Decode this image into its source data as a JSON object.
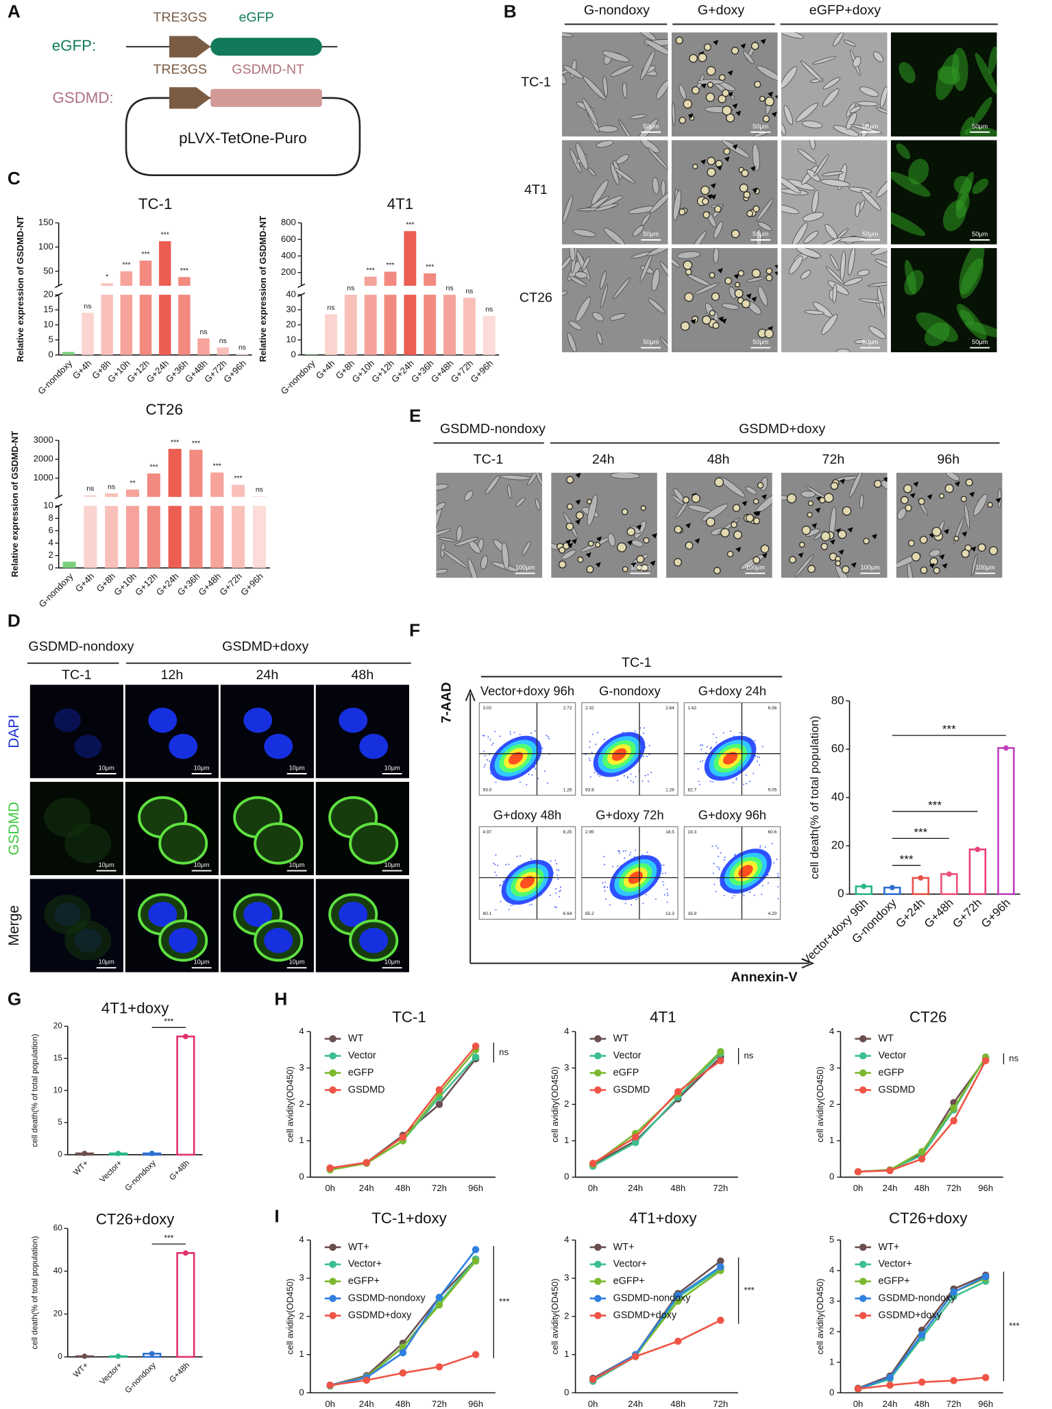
{
  "panels": {
    "letters": [
      "A",
      "B",
      "C",
      "D",
      "E",
      "F",
      "G",
      "H",
      "I"
    ],
    "A": {
      "constructs": [
        {
          "name": "eGFP:",
          "promoter": "TRE3GS",
          "gene": "eGFP"
        },
        {
          "name": "GSDMD:",
          "promoter": "TRE3GS",
          "gene": "GSDMD-NT"
        }
      ],
      "plasmid": "pLVX-TetOne-Puro"
    },
    "B": {
      "groups": [
        "G-nondoxy",
        "G+doxy",
        "eGFP+doxy"
      ],
      "rows": [
        "TC-1",
        "4T1",
        "CT26"
      ],
      "scale_bar": "50μm"
    },
    "D": {
      "groups": [
        "GSDMD-nondoxy",
        "GSDMD+doxy"
      ],
      "columns": [
        "TC-1",
        "12h",
        "24h",
        "48h"
      ],
      "rows": [
        "DAPI",
        "GSDMD",
        "Merge"
      ],
      "scale_bar": "10μm"
    },
    "E": {
      "groups": [
        "GSDMD-nondoxy",
        "GSDMD+doxy"
      ],
      "columns": [
        "TC-1",
        "24h",
        "48h",
        "72h",
        "96h"
      ],
      "scale_bar": "100μm"
    },
    "F": {
      "title": "TC-1",
      "y_axis": "7-AAD",
      "x_axis": "Annexin-V",
      "plots": [
        {
          "title": "Vector+doxy 96h",
          "quadrants": [
            "3.02",
            "2.72",
            "93.0",
            "1.26"
          ]
        },
        {
          "title": "G-nondoxy",
          "quadrants": [
            "2.32",
            "2.64",
            "93.8",
            "1.26"
          ]
        },
        {
          "title": "G+doxy 24h",
          "quadrants": [
            "1.62",
            "6.56",
            "82.7",
            "9.05"
          ]
        },
        {
          "title": "G+doxy 48h",
          "quadrants": [
            "4.97",
            "8.25",
            "80.1",
            "6.64"
          ]
        },
        {
          "title": "G+doxy 72h",
          "quadrants": [
            "2.95",
            "18.5",
            "65.2",
            "13.3"
          ]
        },
        {
          "title": "G+doxy 96h",
          "quadrants": [
            "19.3",
            "60.6",
            "16.9",
            "4.20"
          ]
        }
      ]
    }
  },
  "chart_data": [
    {
      "type": "bar",
      "title": "TC-1",
      "y_label": "Relative expression of GSDMD-NT",
      "categories": [
        "G-nondoxy",
        "G+4h",
        "G+8h",
        "G+10h",
        "G+12h",
        "G+24h",
        "G+36h",
        "G+48h",
        "G+72h",
        "G+96h"
      ],
      "values": [
        1,
        14,
        25,
        50,
        72,
        112,
        38,
        5.5,
        2.5,
        0.3
      ],
      "annotations": [
        null,
        "ns",
        "*",
        "***",
        "***",
        "***",
        "***",
        "ns",
        "ns",
        "ns"
      ],
      "colors": [
        "#7ccf7c",
        "#fbd3cf",
        "#f9c0ba",
        "#f5a39b",
        "#f28a80",
        "#ec5e52",
        "#f28a80",
        "#f5a39b",
        "#f9c0ba",
        "#fcdcd8"
      ],
      "ylim": [
        0,
        150
      ],
      "break_at": 20,
      "yticks": [
        0,
        5,
        10,
        15,
        20,
        50,
        100,
        150
      ]
    },
    {
      "type": "bar",
      "title": "4T1",
      "y_label": "Relative expression of GSDMD-NT",
      "categories": [
        "G-nondoxy",
        "G+4h",
        "G+8h",
        "G+10h",
        "G+12h",
        "G+24h",
        "G+36h",
        "G+48h",
        "G+72h",
        "G+96h"
      ],
      "values": [
        0.3,
        27,
        40,
        150,
        210,
        700,
        190,
        40,
        38,
        26
      ],
      "annotations": [
        null,
        "ns",
        "ns",
        "***",
        "***",
        "***",
        "***",
        "ns",
        "ns",
        "ns"
      ],
      "colors": [
        "#7ccf7c",
        "#fbd3cf",
        "#f9c0ba",
        "#f5a39b",
        "#f28a80",
        "#ec5e52",
        "#f28a80",
        "#f5a39b",
        "#f9c0ba",
        "#fcdcd8"
      ],
      "ylim": [
        0,
        800
      ],
      "break_at": 40,
      "yticks": [
        0,
        10,
        20,
        30,
        40,
        200,
        400,
        600,
        800
      ]
    },
    {
      "type": "bar",
      "title": "CT26",
      "y_label": "Relative expression of GSDMD-NT",
      "categories": [
        "G-nondoxy",
        "G+4h",
        "G+8h",
        "G+10h",
        "G+12h",
        "G+24h",
        "G+36h",
        "G+48h",
        "G+72h",
        "G+96h"
      ],
      "values": [
        1,
        100,
        200,
        400,
        1250,
        2550,
        2500,
        1300,
        650,
        50
      ],
      "annotations": [
        null,
        "ns",
        "ns",
        "**",
        "***",
        "***",
        "***",
        "***",
        "***",
        "ns"
      ],
      "colors": [
        "#7ccf7c",
        "#fbd3cf",
        "#f9c0ba",
        "#f5a39b",
        "#f28a80",
        "#ec5e52",
        "#f28a80",
        "#f5a39b",
        "#f9c0ba",
        "#fcdcd8"
      ],
      "ylim": [
        0,
        3000
      ],
      "break_at": 10,
      "yticks": [
        0,
        2,
        4,
        6,
        8,
        10,
        1000,
        2000,
        3000
      ]
    },
    {
      "type": "bar",
      "y_label": "cell death(% of total population)",
      "categories": [
        "Vector+doxy 96h",
        "G-nondoxy",
        "G+24h",
        "G+48h",
        "G+72h",
        "G+96h"
      ],
      "values": [
        3.2,
        2.7,
        6.7,
        8.3,
        18.5,
        60.5
      ],
      "colors": [
        "#2bb58b",
        "#2f6fd0",
        "#e8514a",
        "#f0507a",
        "#e8407e",
        "#c040c0"
      ],
      "hollow": true,
      "ylim": [
        0,
        80
      ],
      "yticks": [
        0,
        20,
        40,
        60,
        80
      ],
      "brackets": [
        {
          "from": "G-nondoxy",
          "to": "G+24h",
          "label": "***"
        },
        {
          "from": "G-nondoxy",
          "to": "G+48h",
          "label": "***"
        },
        {
          "from": "G-nondoxy",
          "to": "G+72h",
          "label": "***"
        },
        {
          "from": "G-nondoxy",
          "to": "G+96h",
          "label": "***"
        }
      ]
    },
    {
      "type": "bar",
      "title": "4T1+doxy",
      "y_label": "cell death(% of total population)",
      "categories": [
        "WT+",
        "Vector+",
        "G-nondoxy",
        "G+48h"
      ],
      "values": [
        0.2,
        0.2,
        0.2,
        18.4
      ],
      "colors": [
        "#6b4f4f",
        "#2bb58b",
        "#2f6fd0",
        "#e0306e"
      ],
      "hollow": true,
      "ylim": [
        0,
        20
      ],
      "yticks": [
        0,
        5,
        10,
        15,
        20
      ],
      "brackets": [
        {
          "from": "G-nondoxy",
          "to": "G+48h",
          "label": "***"
        }
      ]
    },
    {
      "type": "bar",
      "title": "CT26+doxy",
      "y_label": "cell death(% of total population)",
      "categories": [
        "WT+",
        "Vector+",
        "G-nondoxy",
        "G+48h"
      ],
      "values": [
        0.3,
        0.3,
        1.5,
        48.5
      ],
      "colors": [
        "#6b4f4f",
        "#2bb58b",
        "#2f6fd0",
        "#e0306e"
      ],
      "hollow": true,
      "ylim": [
        0,
        60
      ],
      "yticks": [
        0,
        20,
        40,
        60
      ],
      "brackets": [
        {
          "from": "G-nondoxy",
          "to": "G+48h",
          "label": "***"
        }
      ]
    },
    {
      "type": "line",
      "title": "TC-1",
      "y_label": "cell avidity(OD450)",
      "categories": [
        "0h",
        "24h",
        "48h",
        "72h",
        "96h"
      ],
      "series": [
        {
          "name": "WT",
          "color": "#6b4f4f",
          "values": [
            0.25,
            0.4,
            1.15,
            2.0,
            3.25
          ]
        },
        {
          "name": "Vector",
          "color": "#3cbf8f",
          "values": [
            0.22,
            0.38,
            1.0,
            2.2,
            3.3
          ]
        },
        {
          "name": "eGFP",
          "color": "#7cb82f",
          "values": [
            0.2,
            0.38,
            1.0,
            2.3,
            3.5
          ]
        },
        {
          "name": "GSDMD",
          "color": "#ef5446",
          "values": [
            0.25,
            0.4,
            1.1,
            2.4,
            3.6
          ]
        }
      ],
      "annotation": "ns",
      "ylim": [
        0,
        4
      ],
      "yticks": [
        0,
        1,
        2,
        3,
        4
      ]
    },
    {
      "type": "line",
      "title": "4T1",
      "y_label": "cell avidity(OD450)",
      "categories": [
        "0h",
        "24h",
        "48h",
        "72h"
      ],
      "series": [
        {
          "name": "WT",
          "color": "#6b4f4f",
          "values": [
            0.35,
            1.0,
            2.15,
            3.3
          ]
        },
        {
          "name": "Vector",
          "color": "#3cbf8f",
          "values": [
            0.3,
            0.95,
            2.2,
            3.4
          ]
        },
        {
          "name": "eGFP",
          "color": "#7cb82f",
          "values": [
            0.35,
            1.2,
            2.3,
            3.45
          ]
        },
        {
          "name": "GSDMD",
          "color": "#ef5446",
          "values": [
            0.38,
            1.1,
            2.35,
            3.2
          ]
        }
      ],
      "annotation": "ns",
      "ylim": [
        0,
        4
      ],
      "yticks": [
        0,
        1,
        2,
        3,
        4
      ]
    },
    {
      "type": "line",
      "title": "CT26",
      "y_label": "cell avidity(OD450)",
      "categories": [
        "0h",
        "24h",
        "48h",
        "72h",
        "96h"
      ],
      "series": [
        {
          "name": "WT",
          "color": "#6b4f4f",
          "values": [
            0.15,
            0.2,
            0.65,
            2.05,
            3.25
          ]
        },
        {
          "name": "Vector",
          "color": "#3cbf8f",
          "values": [
            0.15,
            0.2,
            0.6,
            1.85,
            3.3
          ]
        },
        {
          "name": "eGFP",
          "color": "#7cb82f",
          "values": [
            0.15,
            0.2,
            0.7,
            1.9,
            3.3
          ]
        },
        {
          "name": "GSDMD",
          "color": "#ef5446",
          "values": [
            0.15,
            0.18,
            0.5,
            1.55,
            3.2
          ]
        }
      ],
      "annotation": "ns",
      "ylim": [
        0,
        4
      ],
      "yticks": [
        0,
        1,
        2,
        3,
        4
      ]
    },
    {
      "type": "line",
      "title": "TC-1+doxy",
      "y_label": "cell avidity(OD450)",
      "categories": [
        "0h",
        "24h",
        "48h",
        "72h",
        "96h"
      ],
      "series": [
        {
          "name": "WT+",
          "color": "#6b4f4f",
          "values": [
            0.2,
            0.45,
            1.3,
            2.5,
            3.5
          ]
        },
        {
          "name": "Vector+",
          "color": "#3cbf8f",
          "values": [
            0.18,
            0.4,
            1.2,
            2.35,
            3.5
          ]
        },
        {
          "name": "eGFP+",
          "color": "#7cb82f",
          "values": [
            0.2,
            0.42,
            1.2,
            2.3,
            3.45
          ]
        },
        {
          "name": "GSDMD-nondoxy",
          "color": "#2f80e0",
          "values": [
            0.2,
            0.4,
            1.05,
            2.5,
            3.75
          ]
        },
        {
          "name": "GSDMD+doxy",
          "color": "#ef5446",
          "values": [
            0.2,
            0.33,
            0.52,
            0.68,
            1.0
          ]
        }
      ],
      "annotation": "***",
      "ylim": [
        0,
        4
      ],
      "yticks": [
        0,
        1,
        2,
        3,
        4
      ]
    },
    {
      "type": "line",
      "title": "4T1+doxy",
      "y_label": "cell avidity(OD450)",
      "categories": [
        "0h",
        "24h",
        "48h",
        "72h"
      ],
      "series": [
        {
          "name": "WT+",
          "color": "#6b4f4f",
          "values": [
            0.38,
            1.0,
            2.6,
            3.45
          ]
        },
        {
          "name": "Vector+",
          "color": "#3cbf8f",
          "values": [
            0.3,
            0.95,
            2.5,
            3.25
          ]
        },
        {
          "name": "eGFP+",
          "color": "#7cb82f",
          "values": [
            0.35,
            0.98,
            2.4,
            3.2
          ]
        },
        {
          "name": "GSDMD-nondoxy",
          "color": "#2f80e0",
          "values": [
            0.35,
            1.0,
            2.55,
            3.3
          ]
        },
        {
          "name": "GSDMD+doxy",
          "color": "#ef5446",
          "values": [
            0.35,
            0.95,
            1.35,
            1.9
          ]
        }
      ],
      "annotation": "***",
      "ylim": [
        0,
        4
      ],
      "yticks": [
        0,
        1,
        2,
        3,
        4
      ]
    },
    {
      "type": "line",
      "title": "CT26+doxy",
      "y_label": "cell avidity(OD450)",
      "categories": [
        "0h",
        "24h",
        "48h",
        "72h",
        "96h"
      ],
      "series": [
        {
          "name": "WT+",
          "color": "#6b4f4f",
          "values": [
            0.15,
            0.55,
            2.05,
            3.4,
            3.85
          ]
        },
        {
          "name": "Vector+",
          "color": "#3cbf8f",
          "values": [
            0.12,
            0.45,
            1.8,
            3.15,
            3.65
          ]
        },
        {
          "name": "eGFP+",
          "color": "#7cb82f",
          "values": [
            0.13,
            0.5,
            1.9,
            3.3,
            3.75
          ]
        },
        {
          "name": "GSDMD-nondoxy",
          "color": "#2f80e0",
          "values": [
            0.13,
            0.5,
            1.9,
            3.3,
            3.8
          ]
        },
        {
          "name": "GSDMD+doxy",
          "color": "#ef5446",
          "values": [
            0.13,
            0.25,
            0.35,
            0.4,
            0.5
          ]
        }
      ],
      "annotation": "***",
      "ylim": [
        0,
        5
      ],
      "yticks": [
        0,
        1,
        2,
        3,
        4,
        5
      ]
    }
  ]
}
